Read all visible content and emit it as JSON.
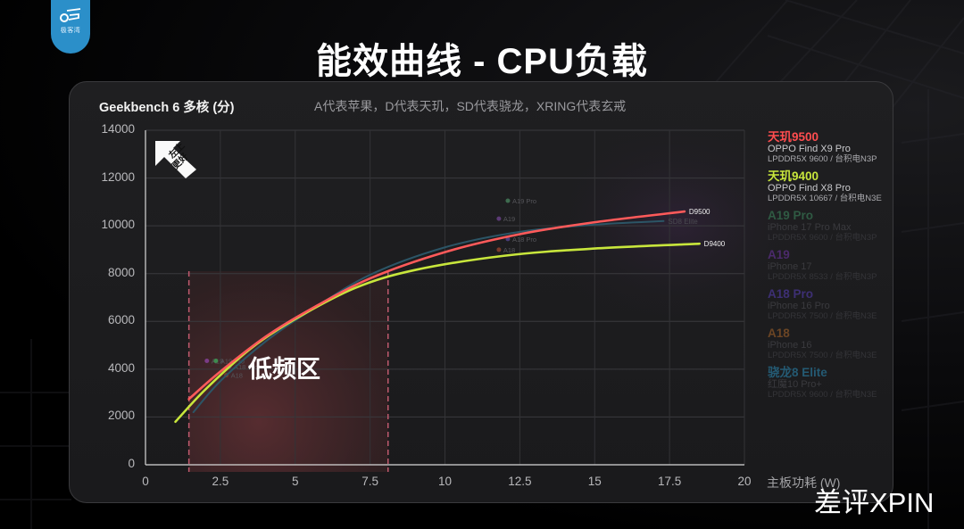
{
  "header": {
    "title": "能效曲线 - CPU负载",
    "logo_text": "极客湾"
  },
  "watermark": "差评XPIN",
  "annotation": {
    "low_freq_label": "低频区",
    "corner_badge_line1": "左上",
    "corner_badge_line2": "更好"
  },
  "legend": [
    {
      "name": "天玑9500",
      "device": "OPPO Find X9 Pro",
      "spec": "LPDDR5X 9600 / 台积电N3P",
      "color": "#ff4d4f",
      "dim": false
    },
    {
      "name": "天玑9400",
      "device": "OPPO Find X8 Pro",
      "spec": "LPDDR5X 10667 / 台积电N3E",
      "color": "#c8e63c",
      "dim": false
    },
    {
      "name": "A19 Pro",
      "device": "iPhone 17 Pro Max",
      "spec": "LPDDR5X 9600 / 台积电N3P",
      "color": "#2f5a43",
      "dim": true
    },
    {
      "name": "A19",
      "device": "iPhone 17",
      "spec": "LPDDR5X 8533 / 台积电N3P",
      "color": "#4b2a6b",
      "dim": true
    },
    {
      "name": "A18 Pro",
      "device": "iPhone 16 Pro",
      "spec": "LPDDR5X 7500 / 台积电N3E",
      "color": "#3d2f74",
      "dim": true
    },
    {
      "name": "A18",
      "device": "iPhone 16",
      "spec": "LPDDR5X 7500 / 台积电N3E",
      "color": "#6b4524",
      "dim": true
    },
    {
      "name": "骁龙8 Elite",
      "device": "红魔10 Pro+",
      "spec": "LPDDR5X 9600 / 台积电N3E",
      "color": "#245a73",
      "dim": true
    }
  ],
  "chart_data": {
    "type": "line",
    "title": "Geekbench 6 多核 (分)",
    "subtitle": "A代表苹果，D代表天玑，SD代表骁龙，XRING代表玄戒",
    "xlabel": "主板功耗 (W)",
    "ylabel": "Geekbench 6 多核 (分)",
    "xlim": [
      0,
      20
    ],
    "ylim": [
      0,
      14000
    ],
    "x_ticks": [
      "0",
      "2.5",
      "5",
      "7.5",
      "10",
      "12.5",
      "15",
      "17.5",
      "20"
    ],
    "y_ticks": [
      "0",
      "2000",
      "4000",
      "6000",
      "8000",
      "10000",
      "12000",
      "14000"
    ],
    "grid": true,
    "legend_position": "right",
    "shaded_region": {
      "label": "低频区",
      "x_start": 1.45,
      "x_end": 8.1
    },
    "series": [
      {
        "name": "D9500",
        "color": "#ff5a5a",
        "x": [
          1.45,
          2.5,
          4,
          5.5,
          7.5,
          10,
          12.5,
          15,
          18
        ],
        "y": [
          2750,
          3900,
          5350,
          6500,
          7800,
          8900,
          9650,
          10150,
          10600
        ]
      },
      {
        "name": "D9400",
        "color": "#c8e63c",
        "x": [
          1.0,
          2.0,
          3.5,
          5.0,
          7.0,
          9.0,
          12.0,
          15.0,
          18.5
        ],
        "y": [
          1800,
          3150,
          4850,
          6100,
          7400,
          8150,
          8750,
          9050,
          9250
        ]
      },
      {
        "name": "SD8 Elite",
        "color": "#2c5566",
        "x": [
          1.6,
          2.5,
          4,
          5.5,
          7.5,
          10,
          12.5,
          15,
          17.3
        ],
        "y": [
          2200,
          3500,
          5150,
          6450,
          7950,
          9100,
          9750,
          10050,
          10200
        ]
      }
    ],
    "points": [
      {
        "name": "A19 Pro",
        "x": 12.1,
        "y": 11050,
        "color": "#3e6b4f"
      },
      {
        "name": "A19",
        "x": 11.8,
        "y": 10300,
        "color": "#5b3a75"
      },
      {
        "name": "A18 Pro",
        "x": 12.1,
        "y": 9450,
        "color": "#4a3d7a"
      },
      {
        "name": "A18",
        "x": 11.8,
        "y": 9000,
        "color": "#7a3a2a"
      },
      {
        "name": "A19",
        "x": 2.05,
        "y": 4350,
        "color": "#7a3c86"
      },
      {
        "name": "A19 Pro",
        "x": 2.35,
        "y": 4350,
        "color": "#3e8b4f"
      },
      {
        "name": "A18 Pro",
        "x": 2.8,
        "y": 4100,
        "color": "#4a3d7a"
      },
      {
        "name": "A18",
        "x": 2.7,
        "y": 3750,
        "color": "#7a3a2a"
      }
    ],
    "end_labels": [
      {
        "text": "D9500",
        "x": 18,
        "y": 10600
      },
      {
        "text": "D9400",
        "x": 18.5,
        "y": 9250
      },
      {
        "text": "SD8 Elite",
        "x": 17.3,
        "y": 10200
      }
    ]
  }
}
